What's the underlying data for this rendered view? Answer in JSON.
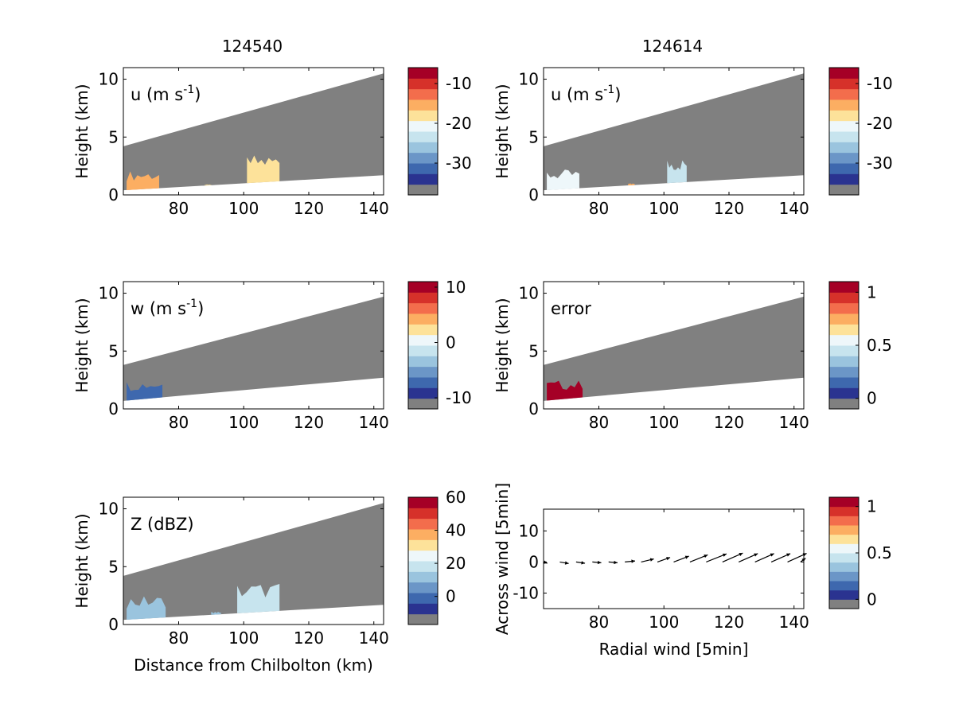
{
  "figure": {
    "col_titles": [
      "124540",
      "124614"
    ]
  },
  "palette": {
    "colors": [
      "#2a3390",
      "#3e68ae",
      "#6b96c7",
      "#9ac4de",
      "#c7e4ee",
      "#eef7fa",
      "#fde29a",
      "#fcae62",
      "#f36d4c",
      "#d6312a",
      "#a50026"
    ],
    "missing": "#808080",
    "frame": "#000000"
  },
  "chart_data": [
    {
      "id": "u-left",
      "type": "heatmap",
      "label_text": "u (m s",
      "label_sup": "-1",
      "label_close": ")",
      "xlim": [
        63,
        143
      ],
      "xticks": [
        80,
        100,
        120,
        140
      ],
      "ylim": [
        0,
        11
      ],
      "yticks": [
        0,
        5,
        10
      ],
      "ylabel": "Height (km)",
      "xlabel": "",
      "scan_bottom_km": [
        0.4,
        1.7
      ],
      "scan_top_km": [
        4.2,
        10.5
      ],
      "colorbar": {
        "ticks": [
          -10,
          -20,
          -30
        ],
        "min": -38,
        "max": -6
      },
      "echoes": [
        {
          "x0": 64,
          "x1": 74,
          "top_km": 2.1,
          "value": -16
        },
        {
          "x0": 88,
          "x1": 90,
          "top_km": 0.9,
          "value": -18
        },
        {
          "x0": 101,
          "x1": 111,
          "top_km": 3.5,
          "value": -18
        }
      ]
    },
    {
      "id": "u-right",
      "type": "heatmap",
      "label_text": "u (m s",
      "label_sup": "-1",
      "label_close": ")",
      "xlim": [
        63,
        143
      ],
      "xticks": [
        80,
        100,
        120,
        140
      ],
      "ylim": [
        0,
        11
      ],
      "yticks": [
        0,
        5,
        10
      ],
      "ylabel": "Height (km)",
      "xlabel": "",
      "scan_bottom_km": [
        0.4,
        1.7
      ],
      "scan_top_km": [
        4.2,
        10.5
      ],
      "colorbar": {
        "ticks": [
          -10,
          -20,
          -30
        ],
        "min": -38,
        "max": -6
      },
      "echoes": [
        {
          "x0": 64,
          "x1": 74,
          "top_km": 2.2,
          "value": -22
        },
        {
          "x0": 89,
          "x1": 91,
          "top_km": 1.0,
          "value": -16
        },
        {
          "x0": 101,
          "x1": 107,
          "top_km": 3.2,
          "value": -24
        }
      ]
    },
    {
      "id": "w-left",
      "type": "heatmap",
      "label_text": "w (m s",
      "label_sup": "-1",
      "label_close": ")",
      "xlim": [
        63,
        143
      ],
      "xticks": [
        80,
        100,
        120,
        140
      ],
      "ylim": [
        0,
        11
      ],
      "yticks": [
        0,
        5,
        10
      ],
      "ylabel": "Height (km)",
      "xlabel": "",
      "scan_bottom_km": [
        0.7,
        2.7
      ],
      "scan_top_km": [
        3.8,
        9.7
      ],
      "colorbar": {
        "ticks": [
          10,
          0,
          -10
        ],
        "min": -12,
        "max": 11
      },
      "echoes": [
        {
          "x0": 64,
          "x1": 75,
          "top_km": 2.5,
          "value": -8
        }
      ]
    },
    {
      "id": "error-right",
      "type": "heatmap",
      "label_text": "error",
      "label_sup": "",
      "label_close": "",
      "xlim": [
        63,
        143
      ],
      "xticks": [
        80,
        100,
        120,
        140
      ],
      "ylim": [
        0,
        11
      ],
      "yticks": [
        0,
        5,
        10
      ],
      "ylabel": "Height (km)",
      "xlabel": "",
      "scan_bottom_km": [
        0.7,
        2.7
      ],
      "scan_top_km": [
        3.8,
        9.7
      ],
      "colorbar": {
        "ticks": [
          1,
          0.5,
          0
        ],
        "min": -0.1,
        "max": 1.1
      },
      "echoes": [
        {
          "x0": 64,
          "x1": 75,
          "top_km": 2.5,
          "value": 1
        }
      ]
    },
    {
      "id": "z-left",
      "type": "heatmap",
      "label_text": "Z (dBZ)",
      "label_sup": "",
      "label_close": "",
      "xlim": [
        63,
        143
      ],
      "xticks": [
        80,
        100,
        120,
        140
      ],
      "ylim": [
        0,
        11
      ],
      "yticks": [
        0,
        5,
        10
      ],
      "ylabel": "Height (km)",
      "xlabel": "Distance from Chilbolton (km)",
      "scan_bottom_km": [
        0.4,
        1.7
      ],
      "scan_top_km": [
        4.2,
        10.5
      ],
      "colorbar": {
        "ticks": [
          60,
          40,
          20,
          0
        ],
        "min": -17,
        "max": 60
      },
      "echoes": [
        {
          "x0": 64,
          "x1": 76,
          "top_km": 2.5,
          "value": 5
        },
        {
          "x0": 90,
          "x1": 93,
          "top_km": 1.1,
          "value": 5
        },
        {
          "x0": 98,
          "x1": 111,
          "top_km": 3.6,
          "value": 15
        }
      ]
    },
    {
      "id": "wind-right",
      "type": "quiver",
      "label_text": "",
      "label_sup": "",
      "label_close": "",
      "xlim": [
        63,
        143
      ],
      "xticks": [
        80,
        100,
        120,
        140
      ],
      "ylim": [
        -15,
        17
      ],
      "yticks": [
        10,
        0,
        -10
      ],
      "ylabel": "Across wind [5min]",
      "xlabel": "Radial wind [5min]",
      "colorbar": {
        "ticks": [
          1,
          0.5,
          0
        ],
        "min": -0.1,
        "max": 1.1
      },
      "arrows": [
        {
          "x": 63,
          "u": 1.5,
          "v": -0.5
        },
        {
          "x": 68,
          "u": 3.5,
          "v": -0.6
        },
        {
          "x": 73,
          "u": 3.5,
          "v": -0.5
        },
        {
          "x": 78,
          "u": 3.5,
          "v": -0.3
        },
        {
          "x": 83,
          "u": 3.5,
          "v": -0.3
        },
        {
          "x": 88,
          "u": 4,
          "v": 0.4
        },
        {
          "x": 93,
          "u": 5,
          "v": 1.2
        },
        {
          "x": 98,
          "u": 5,
          "v": 1.8
        },
        {
          "x": 103,
          "u": 6,
          "v": 2.3
        },
        {
          "x": 108,
          "u": 7,
          "v": 2.8
        },
        {
          "x": 113,
          "u": 8,
          "v": 3.2
        },
        {
          "x": 118,
          "u": 8,
          "v": 3.5
        },
        {
          "x": 123,
          "u": 7.5,
          "v": 3.3
        },
        {
          "x": 128,
          "u": 7.5,
          "v": 3.3
        },
        {
          "x": 133,
          "u": 7.5,
          "v": 3.3
        },
        {
          "x": 138,
          "u": 7.5,
          "v": 3.4
        },
        {
          "x": 142,
          "u": 2,
          "v": 1.5
        }
      ]
    }
  ]
}
